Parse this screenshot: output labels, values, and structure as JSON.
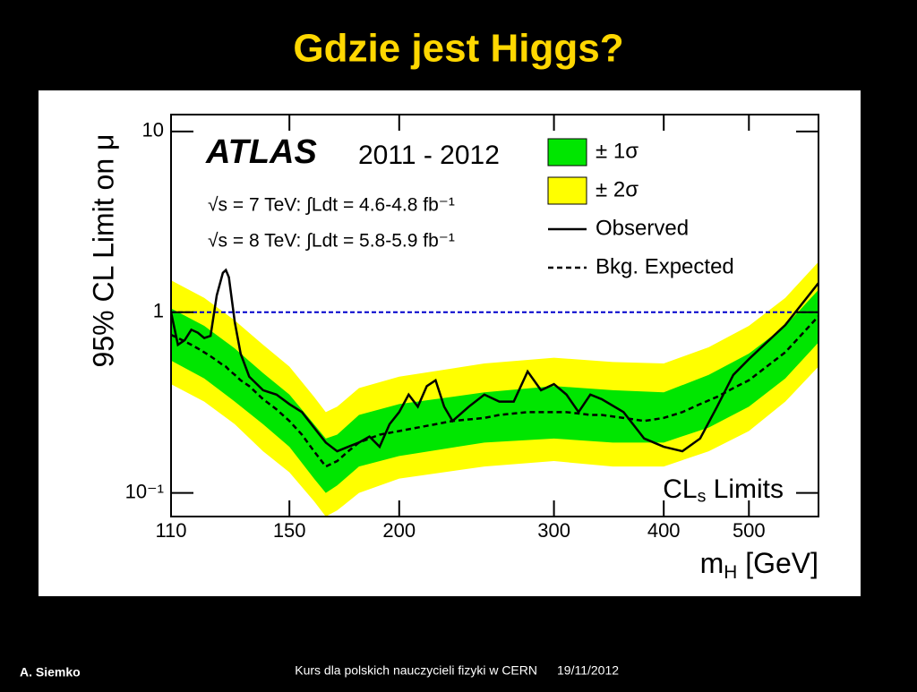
{
  "slide": {
    "title": "Gdzie jest Higgs?",
    "author": "A. Siemko",
    "footer": "Kurs dla polskich nauczycieli fizyki w CERN",
    "date": "19/11/2012"
  },
  "chart_data": {
    "type": "line",
    "experiment": "ATLAS",
    "period": "2011 - 2012",
    "energy_lines": [
      "√s = 7 TeV: ∫Ldt = 4.6-4.8 fb⁻¹",
      "√s = 8 TeV: ∫Ldt = 5.8-5.9 fb⁻¹"
    ],
    "method_label": [
      "CL",
      "s",
      " Limits"
    ],
    "x_label": [
      "m",
      "H",
      " [GeV]"
    ],
    "y_label": "95% CL Limit on μ",
    "xscale": "log",
    "yscale": "log",
    "xlim": [
      110,
      600
    ],
    "ylim": [
      0.074,
      12.4
    ],
    "xticks": [
      110,
      150,
      200,
      300,
      400,
      500
    ],
    "yticks": [
      {
        "value": 0.1,
        "label": "10⁻¹"
      },
      1,
      10
    ],
    "grid": false,
    "reference_line": {
      "value": 1,
      "color": "#0000cc"
    },
    "bands": [
      {
        "name": "± 2σ",
        "color": "#ffff00",
        "x": [
          110,
          120,
          130,
          140,
          150,
          160,
          165,
          170,
          180,
          200,
          250,
          300,
          350,
          400,
          450,
          500,
          550,
          600
        ],
        "upper": [
          1.5,
          1.2,
          0.9,
          0.66,
          0.5,
          0.34,
          0.28,
          0.3,
          0.38,
          0.44,
          0.52,
          0.56,
          0.53,
          0.52,
          0.64,
          0.84,
          1.2,
          1.9
        ],
        "lower": [
          0.4,
          0.32,
          0.24,
          0.17,
          0.13,
          0.09,
          0.074,
          0.08,
          0.1,
          0.12,
          0.14,
          0.15,
          0.14,
          0.14,
          0.17,
          0.22,
          0.32,
          0.5
        ]
      },
      {
        "name": "± 1σ",
        "color": "#00e600",
        "x": [
          110,
          120,
          130,
          140,
          150,
          160,
          165,
          170,
          180,
          200,
          250,
          300,
          350,
          400,
          450,
          500,
          550,
          600
        ],
        "upper": [
          1.05,
          0.84,
          0.63,
          0.46,
          0.35,
          0.24,
          0.2,
          0.21,
          0.27,
          0.31,
          0.36,
          0.39,
          0.37,
          0.36,
          0.45,
          0.59,
          0.84,
          1.33
        ],
        "lower": [
          0.54,
          0.43,
          0.32,
          0.24,
          0.18,
          0.12,
          0.1,
          0.11,
          0.14,
          0.16,
          0.19,
          0.2,
          0.19,
          0.19,
          0.23,
          0.3,
          0.43,
          0.68
        ]
      }
    ],
    "x": [
      110,
      112,
      114,
      116,
      118,
      120,
      122,
      124,
      126,
      127,
      128,
      130,
      132,
      135,
      140,
      145,
      150,
      155,
      160,
      165,
      170,
      175,
      180,
      185,
      190,
      195,
      200,
      205,
      210,
      215,
      220,
      225,
      230,
      240,
      250,
      260,
      270,
      280,
      290,
      300,
      310,
      320,
      330,
      340,
      360,
      380,
      400,
      420,
      440,
      460,
      480,
      500,
      550,
      600
    ],
    "series": [
      {
        "name": "Observed",
        "color": "#000000",
        "linestyle": "solid",
        "values": [
          1.0,
          0.66,
          0.7,
          0.8,
          0.77,
          0.72,
          0.74,
          1.24,
          1.65,
          1.71,
          1.56,
          0.88,
          0.59,
          0.44,
          0.37,
          0.35,
          0.31,
          0.28,
          0.23,
          0.19,
          0.17,
          0.18,
          0.19,
          0.205,
          0.18,
          0.24,
          0.28,
          0.35,
          0.3,
          0.39,
          0.42,
          0.3,
          0.25,
          0.3,
          0.35,
          0.32,
          0.32,
          0.47,
          0.37,
          0.4,
          0.35,
          0.28,
          0.35,
          0.33,
          0.28,
          0.2,
          0.18,
          0.17,
          0.2,
          0.3,
          0.45,
          0.55,
          0.85,
          1.45
        ]
      },
      {
        "name": "Bkg. Expected",
        "color": "#000000",
        "linestyle": "dashed",
        "values": [
          0.75,
          0.72,
          0.69,
          0.66,
          0.63,
          0.6,
          0.57,
          0.54,
          0.51,
          0.5,
          0.48,
          0.45,
          0.42,
          0.39,
          0.33,
          0.29,
          0.25,
          0.21,
          0.17,
          0.14,
          0.15,
          0.17,
          0.19,
          0.2,
          0.21,
          0.215,
          0.22,
          0.225,
          0.23,
          0.235,
          0.24,
          0.245,
          0.25,
          0.255,
          0.26,
          0.27,
          0.275,
          0.28,
          0.28,
          0.28,
          0.28,
          0.275,
          0.27,
          0.27,
          0.26,
          0.25,
          0.26,
          0.28,
          0.31,
          0.34,
          0.38,
          0.42,
          0.6,
          0.95
        ]
      }
    ]
  }
}
